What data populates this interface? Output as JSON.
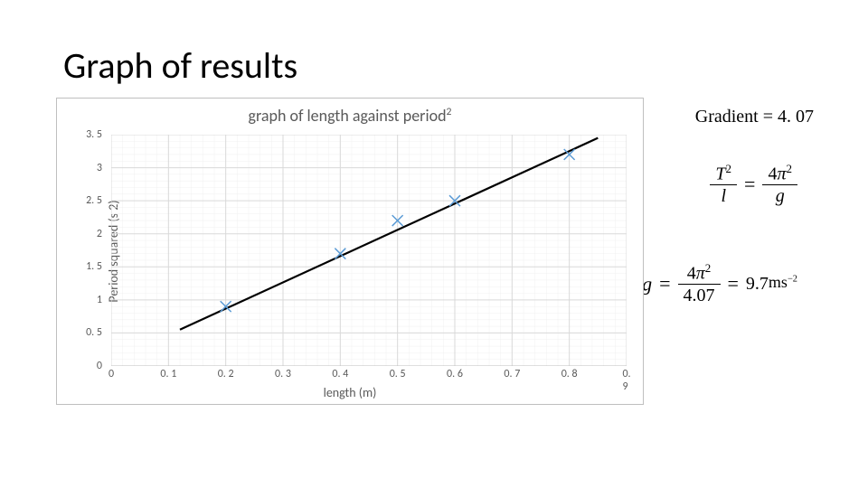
{
  "slide": {
    "title": "Graph of results",
    "gradient_note": "Gradient = 4. 07"
  },
  "equations": {
    "eq1_num": "T",
    "eq1_num_sup": "2",
    "eq1_den": "l",
    "eq1_rhs_num_a": "4",
    "eq1_rhs_num_pi": "π",
    "eq1_rhs_num_sup": "2",
    "eq1_rhs_den": "g",
    "eq2_lhs": "g",
    "eq2_mid_num_a": "4",
    "eq2_mid_num_pi": "π",
    "eq2_mid_num_sup": "2",
    "eq2_mid_den": "4.07",
    "eq2_rhs_val": "9.7",
    "eq2_rhs_unit": "ms",
    "eq2_rhs_unit_sup": "−2"
  },
  "chart": {
    "type": "scatter-line",
    "title_a": "graph of length against period",
    "title_sup": "2",
    "x_label": "length (m)",
    "y_label": "Period squared (s 2)",
    "xlim": [
      0,
      0.9
    ],
    "ylim": [
      0,
      3.5
    ],
    "x_ticks": [
      0,
      0.1,
      0.2,
      0.3,
      0.4,
      0.5,
      0.6,
      0.7,
      0.8,
      0.9
    ],
    "x_tick_labels": [
      "0",
      "0. 1",
      "0. 2",
      "0. 3",
      "0. 4",
      "0. 5",
      "0. 6",
      "0. 7",
      "0. 8",
      "0. 9"
    ],
    "y_ticks": [
      0,
      0.5,
      1,
      1.5,
      2,
      2.5,
      3,
      3.5
    ],
    "y_tick_labels": [
      "0",
      "0. 5",
      "1",
      "1. 5",
      "2",
      "2. 5",
      "3",
      "3. 5"
    ],
    "minor_x_step": 0.02,
    "minor_y_step": 0.1,
    "major_grid_color": "#d9d9d9",
    "minor_grid_color": "#f0f0f0",
    "axis_color": "#bfbfbf",
    "marker_color": "#5b9bd5",
    "marker_style": "x",
    "marker_size": 6,
    "line_color": "#000000",
    "line_width": 2.2,
    "background_color": "#ffffff",
    "data_points": [
      {
        "x": 0.2,
        "y": 0.9
      },
      {
        "x": 0.4,
        "y": 1.7
      },
      {
        "x": 0.5,
        "y": 2.2
      },
      {
        "x": 0.6,
        "y": 2.5
      },
      {
        "x": 0.8,
        "y": 3.2
      }
    ],
    "fit_line": {
      "x1": 0.12,
      "y1": 0.55,
      "x2": 0.85,
      "y2": 3.45
    }
  }
}
